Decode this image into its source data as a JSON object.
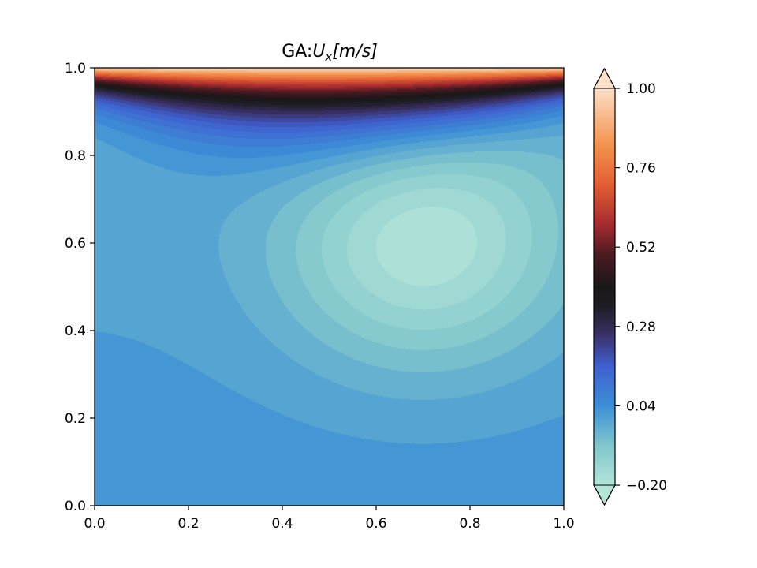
{
  "chart_data": {
    "type": "heatmap",
    "title_prefix": "GA:",
    "title_symbol": "U",
    "title_subscript": "x",
    "title_units": "[m/s]",
    "xlim": [
      0.0,
      1.0
    ],
    "ylim": [
      0.0,
      1.0
    ],
    "xticks": [
      "0.0",
      "0.2",
      "0.4",
      "0.6",
      "0.8",
      "1.0"
    ],
    "yticks": [
      "0.0",
      "0.2",
      "0.4",
      "0.6",
      "0.8",
      "1.0"
    ],
    "colorbar": {
      "min": -0.2,
      "max": 1.0,
      "ticks": [
        "−0.20",
        "0.04",
        "0.28",
        "0.52",
        "0.76",
        "1.00"
      ],
      "extend": "both",
      "colormap": "icefire"
    },
    "field_description_points": [
      {
        "x": 0.5,
        "y": 1.0,
        "value": 1.0
      },
      {
        "x": 0.5,
        "y": 0.96,
        "value": 0.7
      },
      {
        "x": 0.5,
        "y": 0.92,
        "value": 0.42
      },
      {
        "x": 0.5,
        "y": 0.86,
        "value": 0.15
      },
      {
        "x": 0.5,
        "y": 0.8,
        "value": 0.0
      },
      {
        "x": 0.7,
        "y": 0.61,
        "value": -0.2
      },
      {
        "x": 0.5,
        "y": 0.4,
        "value": -0.08
      },
      {
        "x": 0.1,
        "y": 0.1,
        "value": 0.04
      }
    ]
  },
  "colors": {
    "colormap_stops": [
      [
        0.0,
        "#b3e5d9"
      ],
      [
        0.1,
        "#7fc6cc"
      ],
      [
        0.2,
        "#3c8fd6"
      ],
      [
        0.3,
        "#3f5fcf"
      ],
      [
        0.38,
        "#3a3066"
      ],
      [
        0.45,
        "#1d1d24"
      ],
      [
        0.5,
        "#1a1718"
      ],
      [
        0.58,
        "#4a1a22"
      ],
      [
        0.66,
        "#a82c2f"
      ],
      [
        0.76,
        "#e55f34"
      ],
      [
        0.86,
        "#f2944f"
      ],
      [
        1.0,
        "#fde0c8"
      ]
    ]
  }
}
